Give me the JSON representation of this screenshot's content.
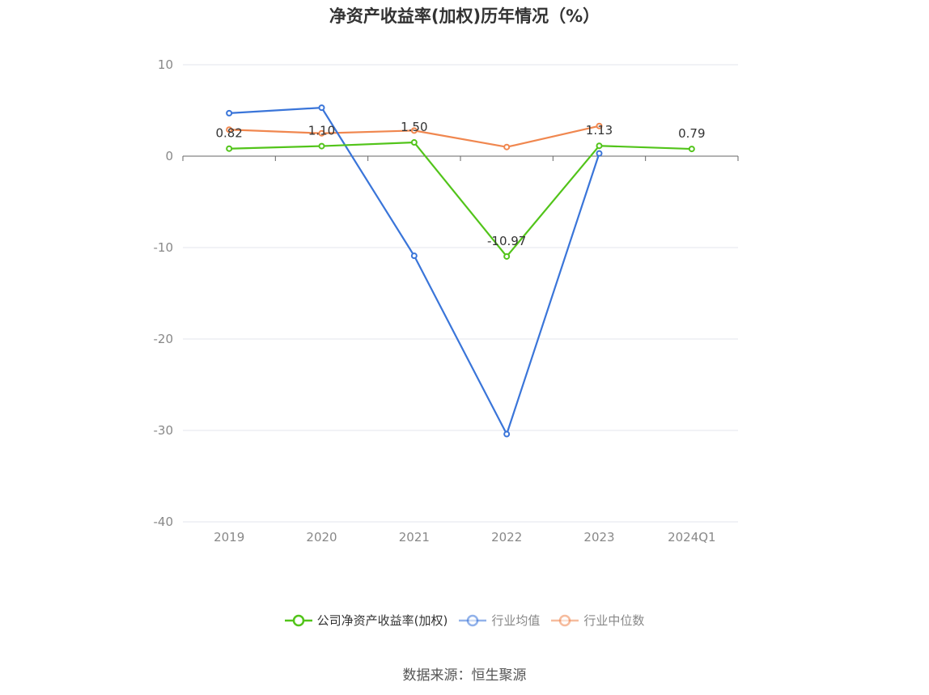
{
  "title": "净资产收益率(加权)历年情况（%）",
  "source": "数据来源：恒生聚源",
  "chart_data": {
    "type": "line",
    "categories": [
      "2019",
      "2020",
      "2021",
      "2022",
      "2023",
      "2024Q1"
    ],
    "ylim": [
      -40,
      10
    ],
    "yticks": [
      10,
      0,
      -10,
      -20,
      -30,
      -40
    ],
    "grid": true,
    "legend_position": "bottom",
    "series": [
      {
        "name": "公司净资产收益率(加权)",
        "color": "#52c41a",
        "dim": false,
        "values": [
          0.82,
          1.1,
          1.5,
          -10.97,
          1.13,
          0.79
        ],
        "labels": [
          "0.82",
          "1.10",
          "1.50",
          "-10.97",
          "1.13",
          "0.79"
        ]
      },
      {
        "name": "行业均值",
        "color": "#3a75d9",
        "dim": true,
        "values": [
          4.7,
          5.3,
          -10.9,
          -30.4,
          0.3,
          null
        ]
      },
      {
        "name": "行业中位数",
        "color": "#f0874f",
        "dim": true,
        "values": [
          2.9,
          2.5,
          2.8,
          1.0,
          3.3,
          null
        ]
      }
    ]
  }
}
